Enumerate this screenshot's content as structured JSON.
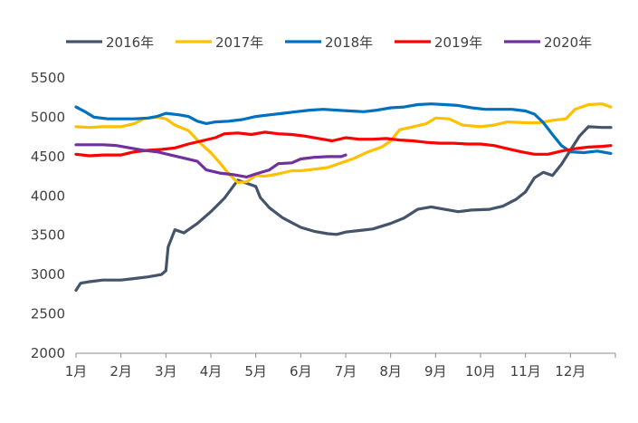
{
  "chart_data": {
    "type": "line",
    "title": "",
    "xlabel": "",
    "ylabel": "",
    "ylim": [
      2000,
      5500
    ],
    "yticks": [
      "5500",
      "5000",
      "4500",
      "4000",
      "3500",
      "3000",
      "2500",
      "2000"
    ],
    "month_labels": [
      "1月",
      "2月",
      "3月",
      "4月",
      "5月",
      "6月",
      "7月",
      "8月",
      "9月",
      "10月",
      "11月",
      "12月"
    ],
    "x_unit": "month (1.0 = start of 1月)",
    "legend_position": "top",
    "grid": false,
    "series": [
      {
        "name": "2016年",
        "color": "#44546A",
        "points": [
          [
            1.0,
            2800
          ],
          [
            1.1,
            2890
          ],
          [
            1.3,
            2910
          ],
          [
            1.6,
            2930
          ],
          [
            2.0,
            2930
          ],
          [
            2.3,
            2950
          ],
          [
            2.6,
            2970
          ],
          [
            2.9,
            3000
          ],
          [
            3.0,
            3050
          ],
          [
            3.05,
            3350
          ],
          [
            3.2,
            3570
          ],
          [
            3.4,
            3530
          ],
          [
            3.7,
            3650
          ],
          [
            4.0,
            3800
          ],
          [
            4.3,
            3970
          ],
          [
            4.6,
            4200
          ],
          [
            5.0,
            4120
          ],
          [
            5.1,
            3980
          ],
          [
            5.3,
            3850
          ],
          [
            5.6,
            3720
          ],
          [
            6.0,
            3600
          ],
          [
            6.3,
            3550
          ],
          [
            6.6,
            3520
          ],
          [
            6.8,
            3510
          ],
          [
            7.0,
            3540
          ],
          [
            7.3,
            3560
          ],
          [
            7.6,
            3580
          ],
          [
            8.0,
            3650
          ],
          [
            8.3,
            3720
          ],
          [
            8.6,
            3830
          ],
          [
            8.9,
            3860
          ],
          [
            9.2,
            3830
          ],
          [
            9.5,
            3800
          ],
          [
            9.8,
            3820
          ],
          [
            10.2,
            3830
          ],
          [
            10.5,
            3870
          ],
          [
            10.8,
            3960
          ],
          [
            11.0,
            4050
          ],
          [
            11.2,
            4230
          ],
          [
            11.4,
            4300
          ],
          [
            11.6,
            4260
          ],
          [
            11.8,
            4400
          ],
          [
            12.0,
            4580
          ],
          [
            12.2,
            4760
          ],
          [
            12.4,
            4880
          ],
          [
            12.7,
            4870
          ],
          [
            12.9,
            4870
          ]
        ]
      },
      {
        "name": "2017年",
        "color": "#FFC000",
        "points": [
          [
            1.0,
            4880
          ],
          [
            1.3,
            4870
          ],
          [
            1.6,
            4880
          ],
          [
            2.0,
            4880
          ],
          [
            2.3,
            4920
          ],
          [
            2.5,
            4980
          ],
          [
            2.8,
            5000
          ],
          [
            3.0,
            4980
          ],
          [
            3.2,
            4900
          ],
          [
            3.5,
            4830
          ],
          [
            3.8,
            4650
          ],
          [
            4.0,
            4550
          ],
          [
            4.2,
            4420
          ],
          [
            4.4,
            4280
          ],
          [
            4.6,
            4170
          ],
          [
            4.8,
            4180
          ],
          [
            5.0,
            4260
          ],
          [
            5.2,
            4250
          ],
          [
            5.5,
            4280
          ],
          [
            5.8,
            4320
          ],
          [
            6.0,
            4320
          ],
          [
            6.3,
            4340
          ],
          [
            6.6,
            4360
          ],
          [
            6.9,
            4420
          ],
          [
            7.2,
            4480
          ],
          [
            7.5,
            4560
          ],
          [
            7.8,
            4620
          ],
          [
            8.0,
            4700
          ],
          [
            8.2,
            4840
          ],
          [
            8.5,
            4880
          ],
          [
            8.8,
            4920
          ],
          [
            9.0,
            4990
          ],
          [
            9.3,
            4980
          ],
          [
            9.6,
            4900
          ],
          [
            10.0,
            4880
          ],
          [
            10.3,
            4900
          ],
          [
            10.6,
            4940
          ],
          [
            11.0,
            4930
          ],
          [
            11.3,
            4930
          ],
          [
            11.6,
            4960
          ],
          [
            11.9,
            4980
          ],
          [
            12.1,
            5100
          ],
          [
            12.4,
            5160
          ],
          [
            12.7,
            5170
          ],
          [
            12.9,
            5130
          ]
        ]
      },
      {
        "name": "2018年",
        "color": "#0070C0",
        "points": [
          [
            1.0,
            5130
          ],
          [
            1.2,
            5070
          ],
          [
            1.4,
            5000
          ],
          [
            1.7,
            4980
          ],
          [
            2.0,
            4980
          ],
          [
            2.3,
            4980
          ],
          [
            2.6,
            4990
          ],
          [
            2.8,
            5010
          ],
          [
            3.0,
            5050
          ],
          [
            3.3,
            5030
          ],
          [
            3.5,
            5010
          ],
          [
            3.7,
            4950
          ],
          [
            3.9,
            4920
          ],
          [
            4.1,
            4940
          ],
          [
            4.4,
            4950
          ],
          [
            4.7,
            4970
          ],
          [
            5.0,
            5010
          ],
          [
            5.3,
            5030
          ],
          [
            5.6,
            5050
          ],
          [
            5.9,
            5070
          ],
          [
            6.2,
            5090
          ],
          [
            6.5,
            5100
          ],
          [
            6.8,
            5090
          ],
          [
            7.1,
            5080
          ],
          [
            7.4,
            5070
          ],
          [
            7.7,
            5090
          ],
          [
            8.0,
            5120
          ],
          [
            8.3,
            5130
          ],
          [
            8.6,
            5160
          ],
          [
            8.9,
            5170
          ],
          [
            9.2,
            5160
          ],
          [
            9.5,
            5150
          ],
          [
            9.8,
            5120
          ],
          [
            10.1,
            5100
          ],
          [
            10.4,
            5100
          ],
          [
            10.7,
            5100
          ],
          [
            11.0,
            5080
          ],
          [
            11.2,
            5040
          ],
          [
            11.4,
            4930
          ],
          [
            11.6,
            4780
          ],
          [
            11.8,
            4640
          ],
          [
            12.0,
            4560
          ],
          [
            12.3,
            4550
          ],
          [
            12.6,
            4570
          ],
          [
            12.9,
            4540
          ]
        ]
      },
      {
        "name": "2019年",
        "color": "#FF0000",
        "points": [
          [
            1.0,
            4530
          ],
          [
            1.3,
            4510
          ],
          [
            1.6,
            4520
          ],
          [
            2.0,
            4520
          ],
          [
            2.3,
            4560
          ],
          [
            2.6,
            4580
          ],
          [
            2.9,
            4590
          ],
          [
            3.2,
            4610
          ],
          [
            3.5,
            4660
          ],
          [
            3.8,
            4700
          ],
          [
            4.1,
            4740
          ],
          [
            4.3,
            4790
          ],
          [
            4.6,
            4800
          ],
          [
            4.9,
            4780
          ],
          [
            5.2,
            4810
          ],
          [
            5.5,
            4790
          ],
          [
            5.8,
            4780
          ],
          [
            6.1,
            4760
          ],
          [
            6.4,
            4730
          ],
          [
            6.7,
            4700
          ],
          [
            7.0,
            4740
          ],
          [
            7.3,
            4720
          ],
          [
            7.6,
            4720
          ],
          [
            7.9,
            4730
          ],
          [
            8.2,
            4710
          ],
          [
            8.5,
            4700
          ],
          [
            8.8,
            4680
          ],
          [
            9.1,
            4670
          ],
          [
            9.4,
            4670
          ],
          [
            9.7,
            4660
          ],
          [
            10.0,
            4660
          ],
          [
            10.3,
            4640
          ],
          [
            10.6,
            4600
          ],
          [
            10.9,
            4560
          ],
          [
            11.2,
            4530
          ],
          [
            11.5,
            4530
          ],
          [
            11.8,
            4570
          ],
          [
            12.1,
            4600
          ],
          [
            12.4,
            4620
          ],
          [
            12.7,
            4630
          ],
          [
            12.9,
            4640
          ]
        ]
      },
      {
        "name": "2020年",
        "color": "#7030A0",
        "points": [
          [
            1.0,
            4650
          ],
          [
            1.3,
            4650
          ],
          [
            1.6,
            4650
          ],
          [
            1.9,
            4640
          ],
          [
            2.2,
            4610
          ],
          [
            2.5,
            4580
          ],
          [
            2.8,
            4560
          ],
          [
            3.1,
            4520
          ],
          [
            3.4,
            4480
          ],
          [
            3.7,
            4440
          ],
          [
            3.9,
            4330
          ],
          [
            4.2,
            4290
          ],
          [
            4.5,
            4270
          ],
          [
            4.8,
            4240
          ],
          [
            5.0,
            4280
          ],
          [
            5.3,
            4330
          ],
          [
            5.5,
            4410
          ],
          [
            5.8,
            4420
          ],
          [
            6.0,
            4470
          ],
          [
            6.3,
            4490
          ],
          [
            6.6,
            4500
          ],
          [
            6.9,
            4500
          ],
          [
            7.0,
            4520
          ]
        ]
      }
    ]
  }
}
